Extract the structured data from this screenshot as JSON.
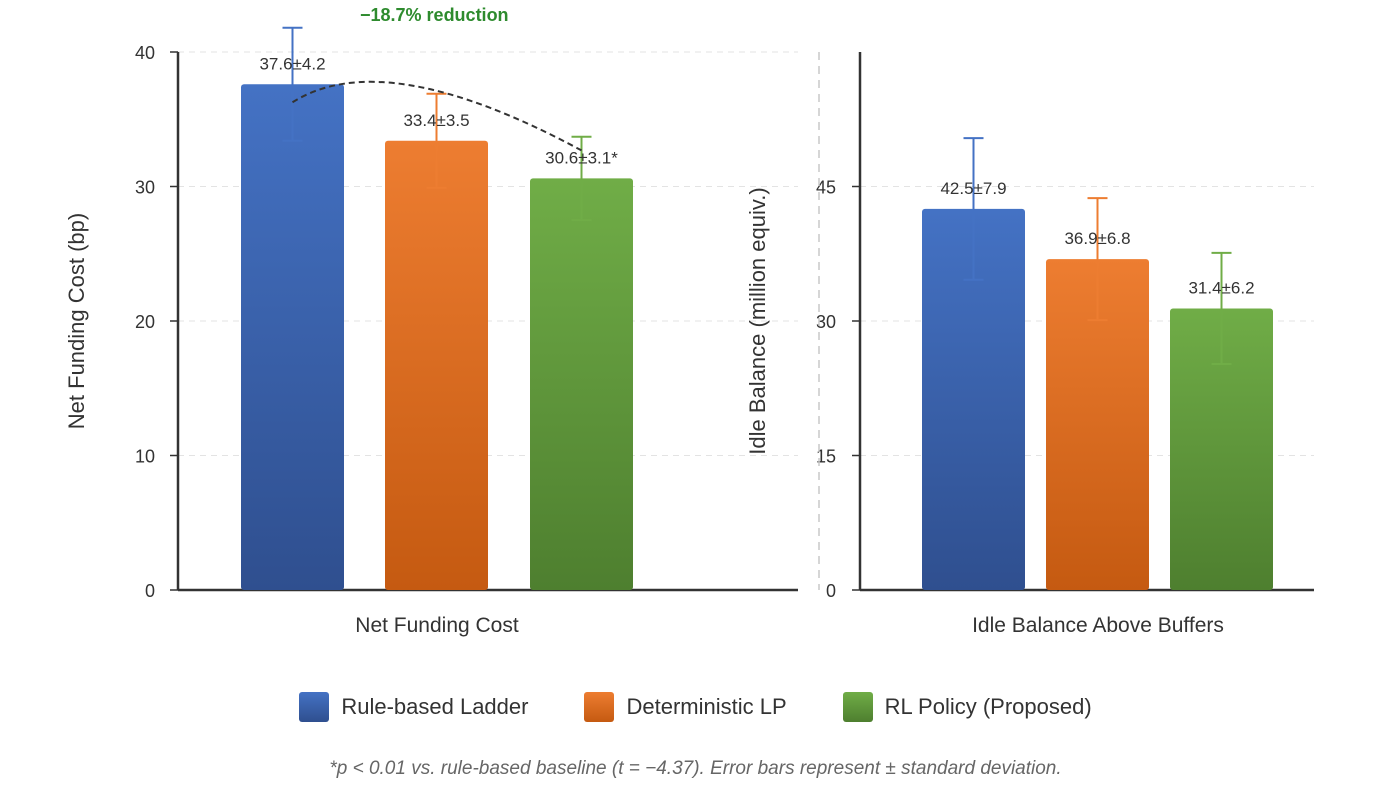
{
  "annotation": {
    "reduction_label": "−18.7% reduction",
    "color": "#2e8b2e"
  },
  "legend": [
    {
      "label": "Rule-based Ladder",
      "color_top": "#4472c4",
      "color_bottom": "#2f4f8f"
    },
    {
      "label": "Deterministic LP",
      "color_top": "#ed7d31",
      "color_bottom": "#c55a11"
    },
    {
      "label": "RL Policy (Proposed)",
      "color_top": "#70ad47",
      "color_bottom": "#4e7f2f"
    }
  ],
  "footnote": "*p < 0.01 vs. rule-based baseline (t = −4.37). Error bars represent ± standard deviation.",
  "chart_data": [
    {
      "type": "bar",
      "xlabel": "Net Funding Cost",
      "ylabel": "Net Funding Cost (bp)",
      "ylim": [
        0,
        40
      ],
      "yticks": [
        0,
        10,
        20,
        30,
        40
      ],
      "grid": true,
      "categories": [
        "Rule-based Ladder",
        "Deterministic LP",
        "RL Policy (Proposed)"
      ],
      "values": [
        37.6,
        33.4,
        30.6
      ],
      "errors": [
        4.2,
        3.5,
        3.1
      ],
      "data_labels": [
        "37.6±4.2",
        "33.4±3.5",
        "30.6±3.1*"
      ]
    },
    {
      "type": "bar",
      "xlabel": "Idle Balance Above Buffers",
      "ylabel": "Idle Balance (million equiv.)",
      "ylim": [
        0,
        60
      ],
      "yticks": [
        0,
        15,
        30,
        45
      ],
      "grid": true,
      "categories": [
        "Rule-based Ladder",
        "Deterministic LP",
        "RL Policy (Proposed)"
      ],
      "values": [
        42.5,
        36.9,
        31.4
      ],
      "errors": [
        7.9,
        6.8,
        6.2
      ],
      "data_labels": [
        "42.5±7.9",
        "36.9±6.8",
        "31.4±6.2"
      ]
    }
  ]
}
